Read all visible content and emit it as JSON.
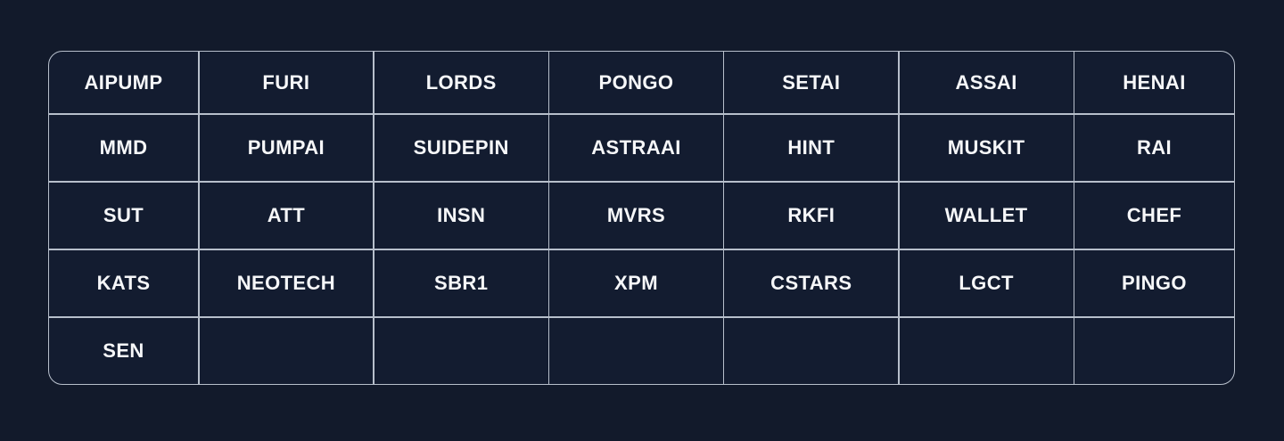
{
  "theme": {
    "page_bg": "#121A2B",
    "cell_bg": "#131C30",
    "grid_line_color": "#B7BFCB",
    "text_color": "#F6F7F9"
  },
  "grid": {
    "columns": 7,
    "rows": [
      [
        "AIPUMP",
        "FURI",
        "LORDS",
        "PONGO",
        "SETAI",
        "ASSAI",
        "HENAI"
      ],
      [
        "MMD",
        "PUMPAI",
        "SUIDEPIN",
        "ASTRAAI",
        "HINT",
        "MUSKIT",
        "RAI"
      ],
      [
        "SUT",
        "ATT",
        "INSN",
        "MVRS",
        "RKFI",
        "WALLET",
        "CHEF"
      ],
      [
        "KATS",
        "NEOTECH",
        "SBR1",
        "XPM",
        "CSTARS",
        "LGCT",
        "PINGO"
      ],
      [
        "SEN",
        "",
        "",
        "",
        "",
        "",
        ""
      ]
    ]
  }
}
